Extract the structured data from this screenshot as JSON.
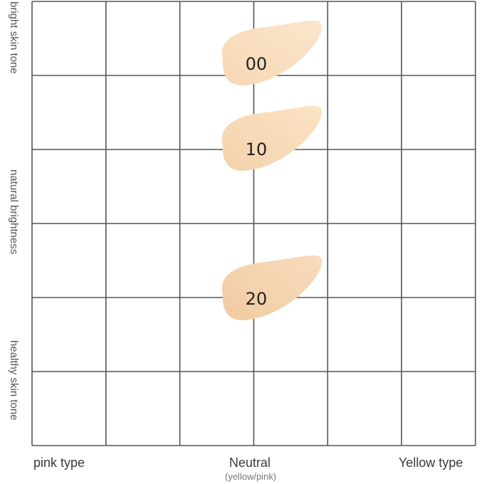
{
  "y_axis": {
    "top_label": "bright skin tone",
    "middle_label": "natural brightness",
    "bottom_label": "healthy skin tone"
  },
  "x_axis": {
    "left_label": "pink type",
    "center_label": "Neutral",
    "center_sublabel": "(yellow/pink)",
    "right_label": "Yellow type"
  },
  "grid": {
    "columns": 6,
    "rows": 6,
    "line_color": "#555555"
  },
  "shades": [
    {
      "code": "00",
      "color": "#f6d7b3",
      "highlight": "#fbe6cc"
    },
    {
      "code": "10",
      "color": "#f4d2ab",
      "highlight": "#fae3c5"
    },
    {
      "code": "20",
      "color": "#f1cba1",
      "highlight": "#f8dcbd"
    }
  ]
}
